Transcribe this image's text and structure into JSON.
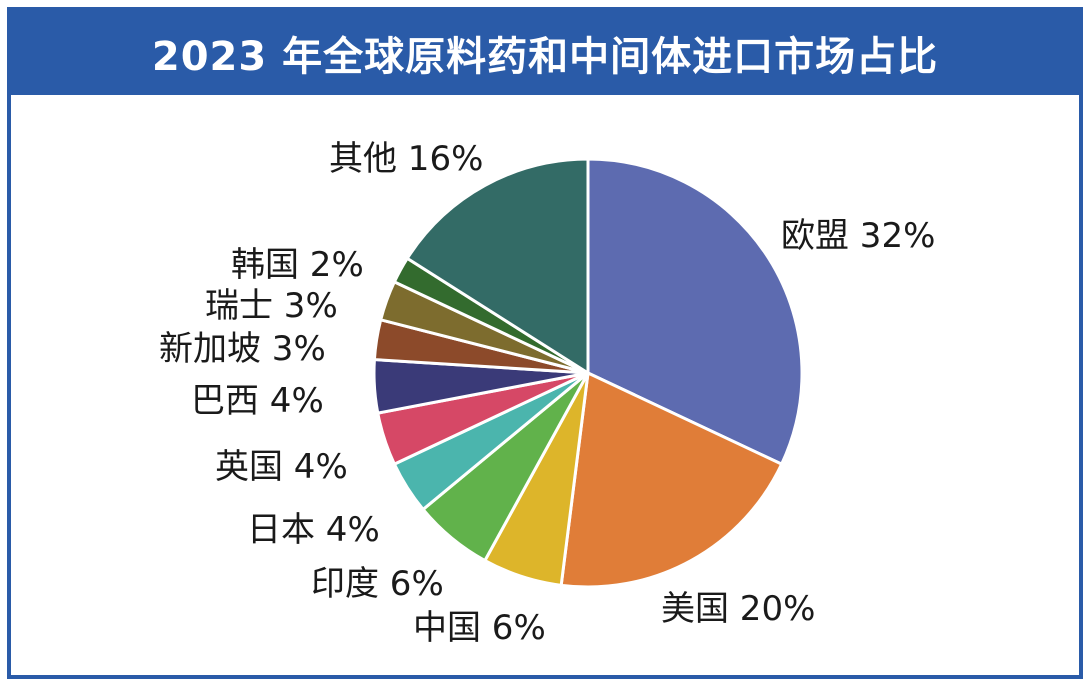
{
  "title": "2023 年全球原料药和中间体进口市场占比",
  "chart_data": {
    "type": "pie",
    "title": "2023 年全球原料药和中间体进口市场占比",
    "start": "12 o'clock",
    "direction": "clockwise",
    "slices": [
      {
        "label": "欧盟 32%",
        "value": 32,
        "color": "#5d6bb0"
      },
      {
        "label": "美国 20%",
        "value": 20,
        "color": "#e07d38"
      },
      {
        "label": "中国 6%",
        "value": 6,
        "color": "#ddb52a"
      },
      {
        "label": "印度 6%",
        "value": 6,
        "color": "#61b24b"
      },
      {
        "label": "日本 4%",
        "value": 4,
        "color": "#4bb5ad"
      },
      {
        "label": "英国 4%",
        "value": 4,
        "color": "#d64866"
      },
      {
        "label": "巴西 4%",
        "value": 4,
        "color": "#3a3a78"
      },
      {
        "label": "新加坡 3%",
        "value": 3,
        "color": "#8c4a2a"
      },
      {
        "label": "瑞士 3%",
        "value": 3,
        "color": "#7d6c2e"
      },
      {
        "label": "韩国 2%",
        "value": 2,
        "color": "#336b2e"
      },
      {
        "label": "其他 16%",
        "value": 16,
        "color": "#336b66"
      }
    ]
  }
}
